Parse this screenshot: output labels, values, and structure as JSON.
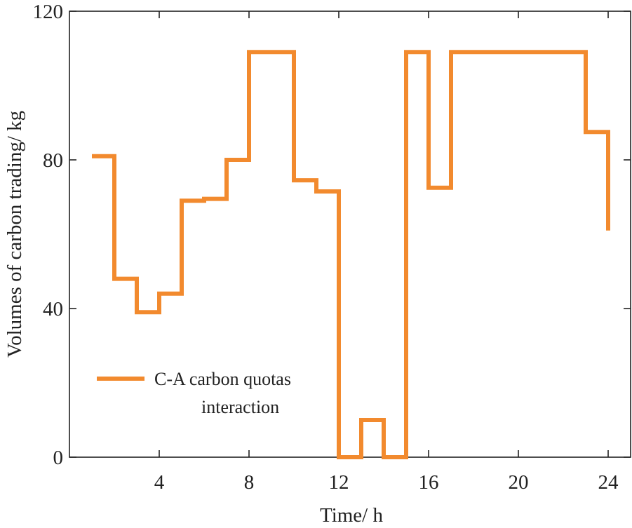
{
  "chart_data": {
    "type": "line",
    "step": "post",
    "title": "",
    "xlabel": "Time/ h",
    "ylabel": "Volumes of carbon trading/ kg",
    "xlim": [
      0,
      25
    ],
    "ylim": [
      0,
      120
    ],
    "xticks": [
      4,
      8,
      12,
      16,
      20,
      24
    ],
    "yticks": [
      0,
      40,
      80,
      120
    ],
    "grid": false,
    "legend_position": "lower-left",
    "series": [
      {
        "name": "C-A carbon quotas interaction",
        "legend_lines": [
          "C-A carbon quotas",
          "interaction"
        ],
        "color": "#F28A2E",
        "x": [
          1,
          2,
          3,
          4,
          5,
          6,
          7,
          8,
          9,
          10,
          11,
          12,
          13,
          14,
          15,
          16,
          17,
          18,
          19,
          20,
          21,
          22,
          23,
          24
        ],
        "values": [
          81,
          48,
          39,
          44,
          69,
          69.5,
          80,
          109,
          109,
          74.5,
          71.5,
          0,
          10,
          0,
          109,
          72.5,
          109,
          109,
          109,
          109,
          109,
          109,
          87.5,
          61
        ]
      }
    ]
  }
}
